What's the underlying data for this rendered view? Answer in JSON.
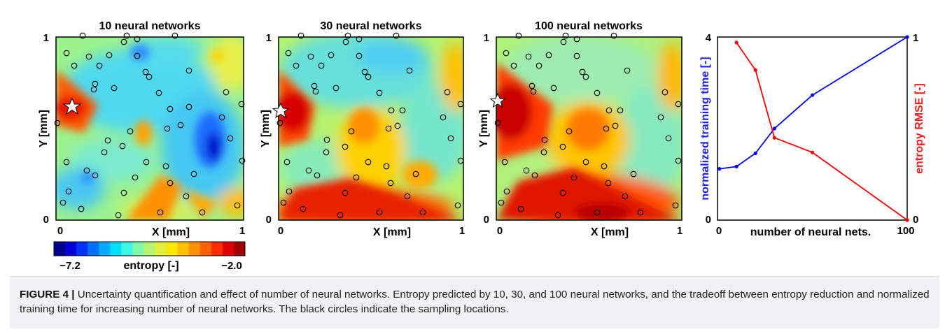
{
  "figure": {
    "panels": [
      {
        "title": "10 neural networks",
        "x_label": "X [mm]",
        "y_label": "Y [mm]",
        "x_ticks": [
          "0",
          "1"
        ],
        "y_ticks": [
          "0",
          "1"
        ]
      },
      {
        "title": "30 neural networks",
        "x_label": "X [mm]",
        "y_label": "Y [mm]",
        "x_ticks": [
          "0",
          "1"
        ],
        "y_ticks": [
          "0",
          "1"
        ]
      },
      {
        "title": "100 neural networks",
        "x_label": "X [mm]",
        "y_label": "Y [mm]",
        "x_ticks": [
          "0",
          "1"
        ],
        "y_ticks": [
          "0",
          "1"
        ]
      }
    ],
    "colorbar": {
      "min_label": "−7.2",
      "max_label": "−2.0",
      "label": "entropy [-]",
      "colors": [
        "#00008f",
        "#0000d8",
        "#0033ff",
        "#0070ff",
        "#00aaff",
        "#00dfff",
        "#3cf7e6",
        "#80f8a8",
        "#b6f572",
        "#e0f03c",
        "#ffe800",
        "#ffc000",
        "#ff9000",
        "#ff6000",
        "#ff2c00",
        "#e00000",
        "#a00000"
      ]
    },
    "tradeoff_chart": {
      "x_label": "number of neural nets.",
      "y_left_label": "normalized training time [-]",
      "y_right_label": "entropy RMSE [-]",
      "x_ticks": [
        "0",
        "100"
      ],
      "y_left_ticks": [
        "0",
        "4"
      ],
      "y_right_ticks": [
        "0",
        "1"
      ]
    }
  },
  "chart_data": [
    {
      "type": "line",
      "x": [
        1,
        10,
        20,
        30,
        50,
        100
      ],
      "x_range": [
        0,
        100
      ],
      "series": [
        {
          "name": "normalized training time [-]",
          "axis": "left",
          "color": "#0000ff",
          "values": [
            1.12,
            1.17,
            1.46,
            2.0,
            2.73,
            4.0
          ]
        },
        {
          "name": "entropy RMSE [-]",
          "axis": "right",
          "color": "#ff0000",
          "x": [
            10,
            20,
            30,
            50,
            100
          ],
          "values": [
            0.97,
            0.82,
            0.45,
            0.37,
            0.0
          ]
        }
      ],
      "x_label": "number of neural nets.",
      "y_left_label": "normalized training time [-]",
      "y_right_label": "entropy RMSE [-]",
      "y_left_range": [
        0,
        4
      ],
      "y_right_range": [
        0,
        1
      ]
    }
  ],
  "caption": {
    "label": "FIGURE 4 |",
    "text": " Uncertainty quantification and effect of number of neural networks. Entropy predicted by 10, 30, and 100 neural networks, and the tradeoff between entropy reduction and normalized training time for increasing number of neural networks. The black circles indicate the sampling locations."
  }
}
